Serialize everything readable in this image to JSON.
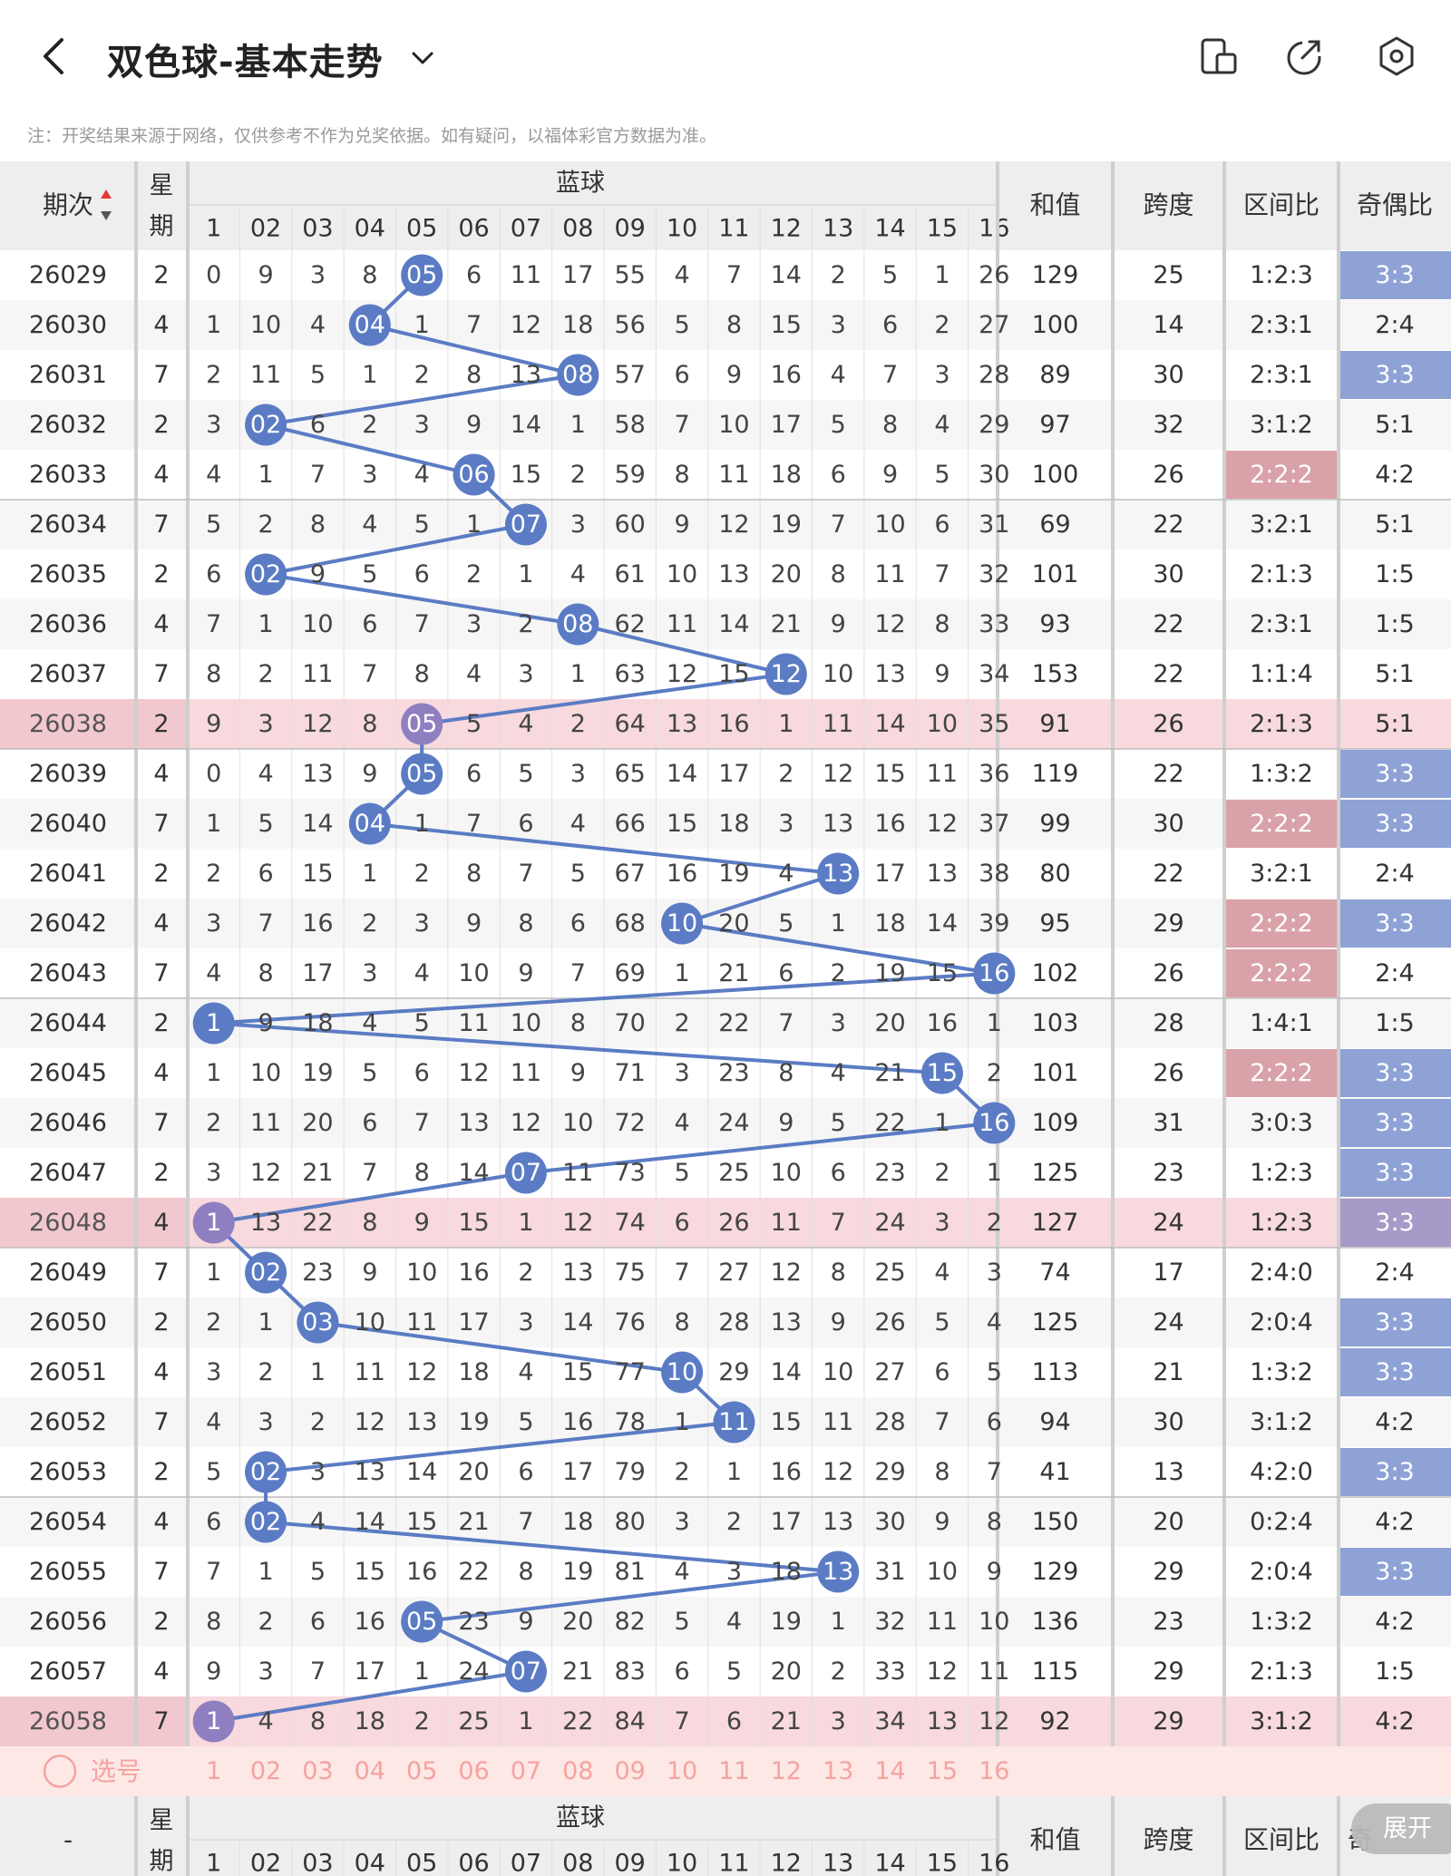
{
  "header": {
    "title": "双色球-基本走势",
    "icons": [
      "back-arrow-icon",
      "chevron-down-icon",
      "device-icon",
      "share-icon",
      "settings-icon"
    ]
  },
  "notice": "注：开奖结果来源于网络，仅供参考不作为兑奖依据。如有疑问，以福体彩官方数据为准。",
  "table": {
    "headers": {
      "period": "期次",
      "week": "星期",
      "blue": "蓝球",
      "sum": "和值",
      "span": "跨度",
      "zone": "区间比",
      "odd_even": "奇偶比"
    },
    "blue_cols": [
      "1",
      "02",
      "03",
      "04",
      "05",
      "06",
      "07",
      "08",
      "09",
      "10",
      "11",
      "12",
      "13",
      "14",
      "15",
      "16"
    ],
    "rows": [
      {
        "p": "26029",
        "w": "2",
        "c": [
          "0",
          "9",
          "3",
          "8",
          "05",
          "6",
          "11",
          "17",
          "55",
          "4",
          "7",
          "14",
          "2",
          "5",
          "1",
          "26"
        ],
        "hit": 5,
        "sum": "129",
        "span": "25",
        "zone": "1:2:3",
        "oe": "3:3"
      },
      {
        "p": "26030",
        "w": "4",
        "c": [
          "1",
          "10",
          "4",
          "04",
          "1",
          "7",
          "12",
          "18",
          "56",
          "5",
          "8",
          "15",
          "3",
          "6",
          "2",
          "27"
        ],
        "hit": 4,
        "sum": "100",
        "span": "14",
        "zone": "2:3:1",
        "oe": "2:4"
      },
      {
        "p": "26031",
        "w": "7",
        "c": [
          "2",
          "11",
          "5",
          "1",
          "2",
          "8",
          "13",
          "08",
          "57",
          "6",
          "9",
          "16",
          "4",
          "7",
          "3",
          "28"
        ],
        "hit": 8,
        "sum": "89",
        "span": "30",
        "zone": "2:3:1",
        "oe": "3:3"
      },
      {
        "p": "26032",
        "w": "2",
        "c": [
          "3",
          "02",
          "6",
          "2",
          "3",
          "9",
          "14",
          "1",
          "58",
          "7",
          "10",
          "17",
          "5",
          "8",
          "4",
          "29"
        ],
        "hit": 2,
        "sum": "97",
        "span": "32",
        "zone": "3:1:2",
        "oe": "5:1"
      },
      {
        "p": "26033",
        "w": "4",
        "c": [
          "4",
          "1",
          "7",
          "3",
          "4",
          "06",
          "15",
          "2",
          "59",
          "8",
          "11",
          "18",
          "6",
          "9",
          "5",
          "30"
        ],
        "hit": 6,
        "sum": "100",
        "span": "26",
        "zone": "2:2:2",
        "oe": "4:2"
      },
      {
        "p": "26034",
        "w": "7",
        "c": [
          "5",
          "2",
          "8",
          "4",
          "5",
          "1",
          "07",
          "3",
          "60",
          "9",
          "12",
          "19",
          "7",
          "10",
          "6",
          "31"
        ],
        "hit": 7,
        "sum": "69",
        "span": "22",
        "zone": "3:2:1",
        "oe": "5:1"
      },
      {
        "p": "26035",
        "w": "2",
        "c": [
          "6",
          "02",
          "9",
          "5",
          "6",
          "2",
          "1",
          "4",
          "61",
          "10",
          "13",
          "20",
          "8",
          "11",
          "7",
          "32"
        ],
        "hit": 2,
        "sum": "101",
        "span": "30",
        "zone": "2:1:3",
        "oe": "1:5"
      },
      {
        "p": "26036",
        "w": "4",
        "c": [
          "7",
          "1",
          "10",
          "6",
          "7",
          "3",
          "2",
          "08",
          "62",
          "11",
          "14",
          "21",
          "9",
          "12",
          "8",
          "33"
        ],
        "hit": 8,
        "sum": "93",
        "span": "22",
        "zone": "2:3:1",
        "oe": "1:5"
      },
      {
        "p": "26037",
        "w": "7",
        "c": [
          "8",
          "2",
          "11",
          "7",
          "8",
          "4",
          "3",
          "1",
          "63",
          "12",
          "15",
          "12",
          "10",
          "13",
          "9",
          "34"
        ],
        "hit": 12,
        "sum": "153",
        "span": "22",
        "zone": "1:1:4",
        "oe": "5:1"
      },
      {
        "p": "26038",
        "w": "2",
        "c": [
          "9",
          "3",
          "12",
          "8",
          "05",
          "5",
          "4",
          "2",
          "64",
          "13",
          "16",
          "1",
          "11",
          "14",
          "10",
          "35"
        ],
        "hit": 5,
        "sum": "91",
        "span": "26",
        "zone": "2:1:3",
        "oe": "5:1"
      },
      {
        "p": "26039",
        "w": "4",
        "c": [
          "0",
          "4",
          "13",
          "9",
          "05",
          "6",
          "5",
          "3",
          "65",
          "14",
          "17",
          "2",
          "12",
          "15",
          "11",
          "36"
        ],
        "hit": 5,
        "sum": "119",
        "span": "22",
        "zone": "1:3:2",
        "oe": "3:3"
      },
      {
        "p": "26040",
        "w": "7",
        "c": [
          "1",
          "5",
          "14",
          "04",
          "1",
          "7",
          "6",
          "4",
          "66",
          "15",
          "18",
          "3",
          "13",
          "16",
          "12",
          "37"
        ],
        "hit": 4,
        "sum": "99",
        "span": "30",
        "zone": "2:2:2",
        "oe": "3:3"
      },
      {
        "p": "26041",
        "w": "2",
        "c": [
          "2",
          "6",
          "15",
          "1",
          "2",
          "8",
          "7",
          "5",
          "67",
          "16",
          "19",
          "4",
          "13",
          "17",
          "13",
          "38"
        ],
        "hit": 13,
        "sum": "80",
        "span": "22",
        "zone": "3:2:1",
        "oe": "2:4"
      },
      {
        "p": "26042",
        "w": "4",
        "c": [
          "3",
          "7",
          "16",
          "2",
          "3",
          "9",
          "8",
          "6",
          "68",
          "10",
          "20",
          "5",
          "1",
          "18",
          "14",
          "39"
        ],
        "hit": 10,
        "sum": "95",
        "span": "29",
        "zone": "2:2:2",
        "oe": "3:3"
      },
      {
        "p": "26043",
        "w": "7",
        "c": [
          "4",
          "8",
          "17",
          "3",
          "4",
          "10",
          "9",
          "7",
          "69",
          "1",
          "21",
          "6",
          "2",
          "19",
          "15",
          "16"
        ],
        "hit": 16,
        "sum": "102",
        "span": "26",
        "zone": "2:2:2",
        "oe": "2:4"
      },
      {
        "p": "26044",
        "w": "2",
        "c": [
          "1",
          "9",
          "18",
          "4",
          "5",
          "11",
          "10",
          "8",
          "70",
          "2",
          "22",
          "7",
          "3",
          "20",
          "16",
          "1"
        ],
        "hit": 1,
        "sum": "103",
        "span": "28",
        "zone": "1:4:1",
        "oe": "1:5"
      },
      {
        "p": "26045",
        "w": "4",
        "c": [
          "1",
          "10",
          "19",
          "5",
          "6",
          "12",
          "11",
          "9",
          "71",
          "3",
          "23",
          "8",
          "4",
          "21",
          "15",
          "2"
        ],
        "hit": 15,
        "sum": "101",
        "span": "26",
        "zone": "2:2:2",
        "oe": "3:3"
      },
      {
        "p": "26046",
        "w": "7",
        "c": [
          "2",
          "11",
          "20",
          "6",
          "7",
          "13",
          "12",
          "10",
          "72",
          "4",
          "24",
          "9",
          "5",
          "22",
          "1",
          "16"
        ],
        "hit": 16,
        "sum": "109",
        "span": "31",
        "zone": "3:0:3",
        "oe": "3:3"
      },
      {
        "p": "26047",
        "w": "2",
        "c": [
          "3",
          "12",
          "21",
          "7",
          "8",
          "14",
          "07",
          "11",
          "73",
          "5",
          "25",
          "10",
          "6",
          "23",
          "2",
          "1"
        ],
        "hit": 7,
        "sum": "125",
        "span": "23",
        "zone": "1:2:3",
        "oe": "3:3"
      },
      {
        "p": "26048",
        "w": "4",
        "c": [
          "1",
          "13",
          "22",
          "8",
          "9",
          "15",
          "1",
          "12",
          "74",
          "6",
          "26",
          "11",
          "7",
          "24",
          "3",
          "2"
        ],
        "hit": 1,
        "sum": "127",
        "span": "24",
        "zone": "1:2:3",
        "oe": "3:3"
      },
      {
        "p": "26049",
        "w": "7",
        "c": [
          "1",
          "02",
          "23",
          "9",
          "10",
          "16",
          "2",
          "13",
          "75",
          "7",
          "27",
          "12",
          "8",
          "25",
          "4",
          "3"
        ],
        "hit": 2,
        "sum": "74",
        "span": "17",
        "zone": "2:4:0",
        "oe": "2:4"
      },
      {
        "p": "26050",
        "w": "2",
        "c": [
          "2",
          "1",
          "03",
          "10",
          "11",
          "17",
          "3",
          "14",
          "76",
          "8",
          "28",
          "13",
          "9",
          "26",
          "5",
          "4"
        ],
        "hit": 3,
        "sum": "125",
        "span": "24",
        "zone": "2:0:4",
        "oe": "3:3"
      },
      {
        "p": "26051",
        "w": "4",
        "c": [
          "3",
          "2",
          "1",
          "11",
          "12",
          "18",
          "4",
          "15",
          "77",
          "10",
          "29",
          "14",
          "10",
          "27",
          "6",
          "5"
        ],
        "hit": 10,
        "sum": "113",
        "span": "21",
        "zone": "1:3:2",
        "oe": "3:3"
      },
      {
        "p": "26052",
        "w": "7",
        "c": [
          "4",
          "3",
          "2",
          "12",
          "13",
          "19",
          "5",
          "16",
          "78",
          "1",
          "11",
          "15",
          "11",
          "28",
          "7",
          "6"
        ],
        "hit": 11,
        "sum": "94",
        "span": "30",
        "zone": "3:1:2",
        "oe": "4:2"
      },
      {
        "p": "26053",
        "w": "2",
        "c": [
          "5",
          "02",
          "3",
          "13",
          "14",
          "20",
          "6",
          "17",
          "79",
          "2",
          "1",
          "16",
          "12",
          "29",
          "8",
          "7"
        ],
        "hit": 2,
        "sum": "41",
        "span": "13",
        "zone": "4:2:0",
        "oe": "3:3"
      },
      {
        "p": "26054",
        "w": "4",
        "c": [
          "6",
          "02",
          "4",
          "14",
          "15",
          "21",
          "7",
          "18",
          "80",
          "3",
          "2",
          "17",
          "13",
          "30",
          "9",
          "8"
        ],
        "hit": 2,
        "sum": "150",
        "span": "20",
        "zone": "0:2:4",
        "oe": "4:2"
      },
      {
        "p": "26055",
        "w": "7",
        "c": [
          "7",
          "1",
          "5",
          "15",
          "16",
          "22",
          "8",
          "19",
          "81",
          "4",
          "3",
          "18",
          "13",
          "31",
          "10",
          "9"
        ],
        "hit": 13,
        "sum": "129",
        "span": "29",
        "zone": "2:0:4",
        "oe": "3:3"
      },
      {
        "p": "26056",
        "w": "2",
        "c": [
          "8",
          "2",
          "6",
          "16",
          "05",
          "23",
          "9",
          "20",
          "82",
          "5",
          "4",
          "19",
          "1",
          "32",
          "11",
          "10"
        ],
        "hit": 5,
        "sum": "136",
        "span": "23",
        "zone": "1:3:2",
        "oe": "4:2"
      },
      {
        "p": "26057",
        "w": "4",
        "c": [
          "9",
          "3",
          "7",
          "17",
          "1",
          "24",
          "07",
          "21",
          "83",
          "6",
          "5",
          "20",
          "2",
          "33",
          "12",
          "11"
        ],
        "hit": 7,
        "sum": "115",
        "span": "29",
        "zone": "2:1:3",
        "oe": "1:5"
      },
      {
        "p": "26058",
        "w": "7",
        "c": [
          "1",
          "4",
          "8",
          "18",
          "2",
          "25",
          "1",
          "22",
          "84",
          "7",
          "6",
          "21",
          "3",
          "34",
          "13",
          "12"
        ],
        "hit": 1,
        "sum": "92",
        "span": "29",
        "zone": "3:1:2",
        "oe": "4:2"
      }
    ],
    "highlight_rows": [
      "26038",
      "26048",
      "26058"
    ],
    "select_label": "选号",
    "footer": {
      "dash": "-",
      "week": "星期",
      "blue": "蓝球",
      "sum": "和值",
      "span": "跨度",
      "zone": "区间比",
      "odd_even_partial": "奇"
    },
    "expand_label": "展开"
  },
  "colors": {
    "ball": "#5b7cc4",
    "line": "#5b7cc4",
    "pink_row": "#f7d9de",
    "pink_row_first": "#f2c8cf",
    "zone_highlight": "#d9a2a8",
    "oe_highlight": "#8ea2d6",
    "oe_highlight_pink": "#a79ac8",
    "header_bg": "#eeeeee",
    "select_row": "#fde8e6",
    "select_text": "#f4a3a0"
  }
}
